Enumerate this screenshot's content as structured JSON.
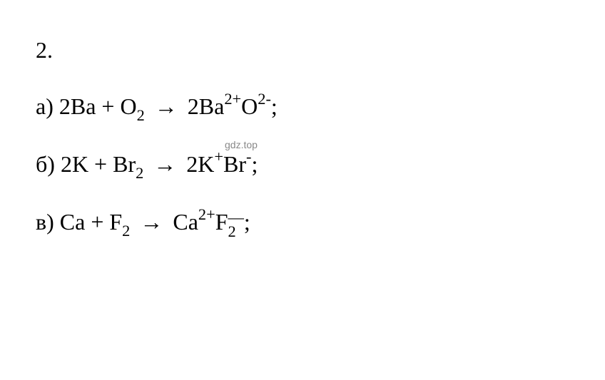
{
  "problem_number": "2.",
  "watermark": "gdz.top",
  "lines": {
    "a": {
      "label": "а)",
      "coeff_1": "2",
      "elem_1": "Ba",
      "plus": "+",
      "elem_2": "O",
      "elem_2_sub": "2",
      "arrow": "→",
      "coeff_2": "2",
      "prod_1": "Ba",
      "prod_1_charge": "2+",
      "prod_2": "O",
      "prod_2_charge": "2-",
      "end": ";"
    },
    "b": {
      "label": "б)",
      "coeff_1": "2",
      "elem_1": "K",
      "plus": "+",
      "elem_2": "Br",
      "elem_2_sub": "2",
      "arrow": "→",
      "coeff_2": "2",
      "prod_1": "K",
      "prod_1_charge": "+",
      "prod_2": "Br",
      "prod_2_charge": "-",
      "end": ";"
    },
    "c": {
      "label": "в)",
      "elem_1": "Ca",
      "plus": "+",
      "elem_2": "F",
      "elem_2_sub": "2",
      "arrow": "→",
      "prod_1": "Ca",
      "prod_1_charge": "2+",
      "prod_2": "F",
      "prod_2_sub": "2",
      "prod_2_charge": "—",
      "end": ";"
    }
  }
}
